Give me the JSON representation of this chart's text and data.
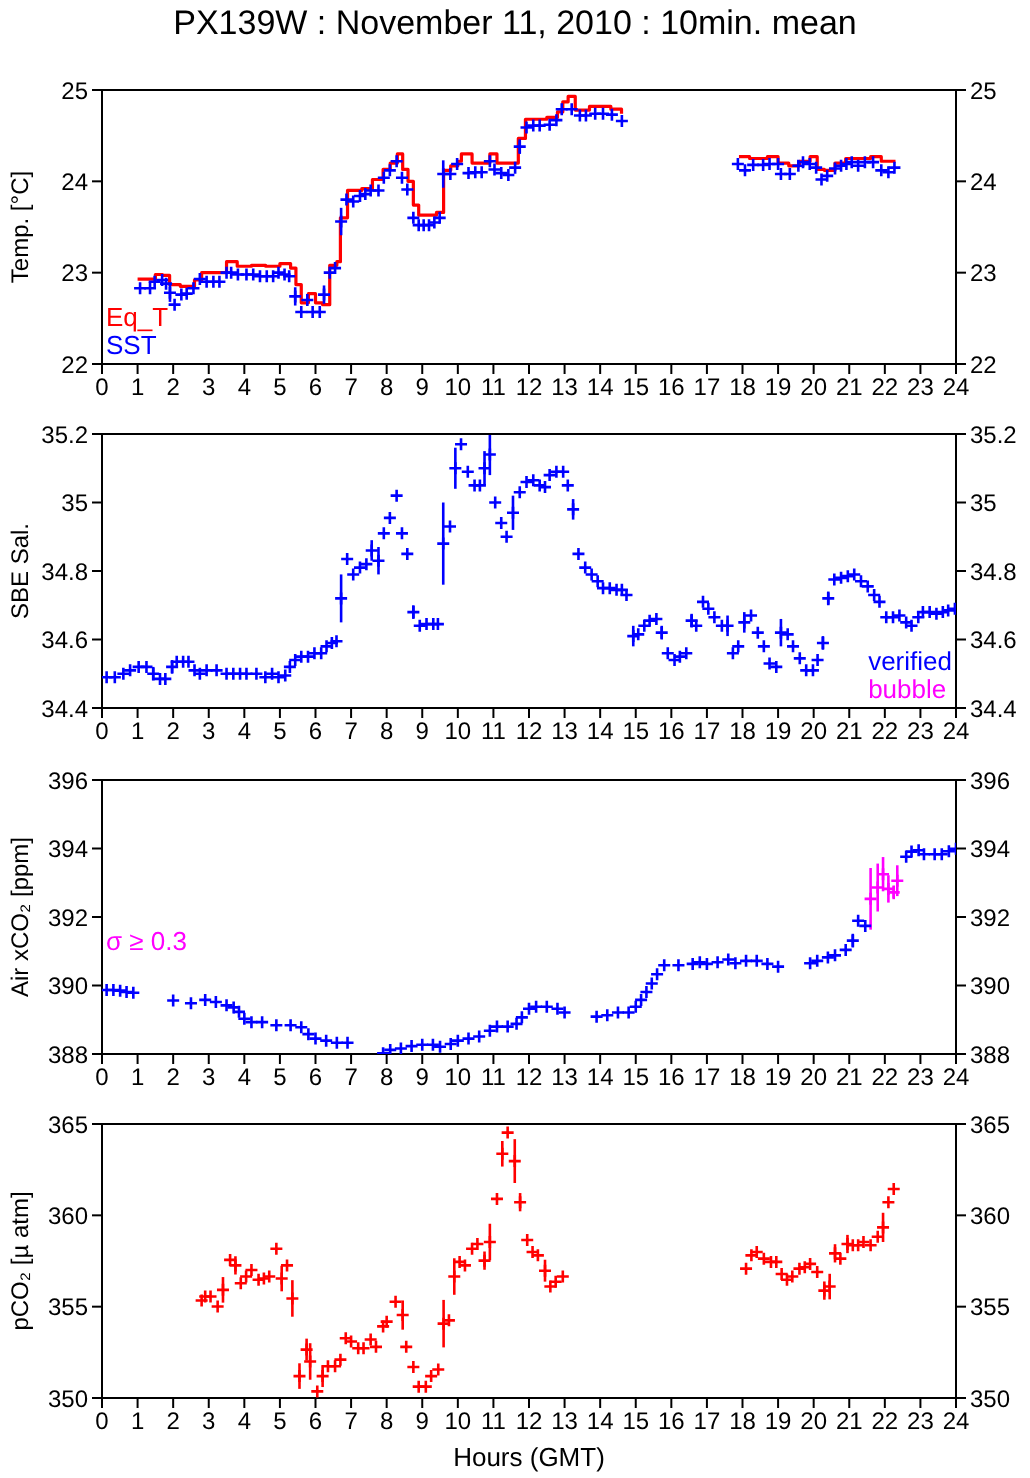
{
  "chart_data": [
    {
      "type": "scatter",
      "title": "PX139W : November 11, 2010 : 10min. mean",
      "ylabel": "Temp. [°C]",
      "marker": "cross",
      "legend": "bottom left",
      "xlim": [
        0,
        24
      ],
      "xticks": [
        0,
        1,
        2,
        3,
        4,
        5,
        6,
        7,
        8,
        9,
        10,
        11,
        12,
        13,
        14,
        15,
        16,
        17,
        18,
        19,
        20,
        21,
        22,
        23,
        24
      ],
      "ylim": [
        22,
        25
      ],
      "yticks": [
        22,
        23,
        24,
        25
      ],
      "y2lim": [
        22,
        25
      ],
      "y2ticks": [
        22,
        23,
        24,
        25
      ],
      "series": [
        {
          "name": "Eq_T",
          "type": "step",
          "marker": "none",
          "color": "#ff0000",
          "x": [
            1.0,
            1.5,
            1.7,
            1.9,
            2.2,
            2.6,
            2.8,
            3.3,
            3.5,
            3.8,
            4.2,
            4.6,
            5.0,
            5.3,
            5.45,
            5.6,
            5.8,
            6.0,
            6.2,
            6.4,
            6.6,
            6.7,
            6.9,
            7.3,
            7.6,
            7.9,
            8.1,
            8.3,
            8.45,
            8.6,
            8.75,
            8.9,
            9.4,
            9.6,
            9.8,
            10.0,
            10.1,
            10.4,
            10.9,
            11.1,
            11.7,
            11.9,
            12.5,
            12.8,
            12.95,
            13.1,
            13.3,
            13.7,
            14.3,
            14.6,
            14.75,
            17.9,
            18.2,
            18.7,
            19.0,
            19.3,
            19.6,
            19.9,
            20.1,
            20.3,
            20.6,
            20.9,
            21.3,
            21.6,
            21.9,
            22.3
          ],
          "values": [
            22.93,
            22.98,
            22.97,
            22.87,
            22.85,
            22.92,
            23.0,
            23.0,
            23.12,
            23.07,
            23.08,
            23.07,
            23.1,
            23.05,
            22.87,
            22.67,
            22.77,
            22.67,
            22.65,
            23.08,
            23.12,
            23.6,
            23.9,
            23.92,
            24.02,
            24.13,
            24.2,
            24.3,
            24.13,
            24.0,
            23.74,
            23.63,
            23.66,
            24.12,
            24.17,
            24.22,
            24.3,
            24.2,
            24.3,
            24.2,
            24.47,
            24.68,
            24.7,
            24.76,
            24.87,
            24.93,
            24.78,
            24.82,
            24.79,
            24.74,
            null,
            24.27,
            24.25,
            24.27,
            24.2,
            24.17,
            24.22,
            24.27,
            24.13,
            24.12,
            24.2,
            24.25,
            24.25,
            24.27,
            24.22,
            24.22
          ]
        },
        {
          "name": "SST",
          "color": "#0000ff",
          "x": [
            1.07,
            1.35,
            1.48,
            1.69,
            1.8,
            1.91,
            2.04,
            2.23,
            2.38,
            2.57,
            2.75,
            2.94,
            3.13,
            3.3,
            3.5,
            3.63,
            3.82,
            4.06,
            4.25,
            4.44,
            4.63,
            4.81,
            4.96,
            5.13,
            5.26,
            5.43,
            5.6,
            5.77,
            5.92,
            6.12,
            6.24,
            6.4,
            6.55,
            6.72,
            6.87,
            7.06,
            7.25,
            7.4,
            7.55,
            7.77,
            7.92,
            8.09,
            8.28,
            8.43,
            8.58,
            8.75,
            8.9,
            9.04,
            9.19,
            9.34,
            9.49,
            9.59,
            9.79,
            9.98,
            10.3,
            10.49,
            10.67,
            10.9,
            11.03,
            11.22,
            11.42,
            11.61,
            11.74,
            11.93,
            12.12,
            12.3,
            12.58,
            12.77,
            12.92,
            13.2,
            13.43,
            13.6,
            13.86,
            14.08,
            14.33,
            14.61,
            17.87,
            18.07,
            18.3,
            18.58,
            18.76,
            19.0,
            19.08,
            19.33,
            19.57,
            19.7,
            19.89,
            20.07,
            20.22,
            20.38,
            20.6,
            20.77,
            20.92,
            21.07,
            21.25,
            21.44,
            21.67,
            21.9,
            22.1,
            22.27
          ],
          "values": [
            22.83,
            22.83,
            22.9,
            22.92,
            22.88,
            22.78,
            22.65,
            22.76,
            22.77,
            22.83,
            22.93,
            22.9,
            22.9,
            22.9,
            23.0,
            23.0,
            22.98,
            22.98,
            22.98,
            22.96,
            22.96,
            22.96,
            23.0,
            22.98,
            22.96,
            22.74,
            22.57,
            22.7,
            22.57,
            22.57,
            22.76,
            23.0,
            23.05,
            23.56,
            23.8,
            23.78,
            23.84,
            23.86,
            23.9,
            23.9,
            24.04,
            24.12,
            24.22,
            24.04,
            23.91,
            23.6,
            23.52,
            23.52,
            23.52,
            23.55,
            23.6,
            24.08,
            24.08,
            24.19,
            24.09,
            24.1,
            24.1,
            24.22,
            24.13,
            24.09,
            24.07,
            24.15,
            24.38,
            24.59,
            24.61,
            24.61,
            24.62,
            24.67,
            24.79,
            24.79,
            24.72,
            24.72,
            24.74,
            24.74,
            24.73,
            24.66,
            24.19,
            24.12,
            24.18,
            24.18,
            24.19,
            24.19,
            24.08,
            24.08,
            24.17,
            24.21,
            24.19,
            24.15,
            24.02,
            24.06,
            24.14,
            24.17,
            24.19,
            24.21,
            24.17,
            24.21,
            24.21,
            24.12,
            24.1,
            24.15
          ],
          "errors": [
            null,
            null,
            null,
            null,
            null,
            0.1,
            null,
            null,
            null,
            null,
            null,
            null,
            null,
            null,
            null,
            null,
            null,
            null,
            null,
            null,
            null,
            null,
            null,
            null,
            null,
            0.1,
            null,
            null,
            null,
            null,
            0.1,
            null,
            null,
            0.15,
            null,
            null,
            null,
            null,
            null,
            null,
            null,
            null,
            null,
            null,
            null,
            null,
            null,
            null,
            null,
            null,
            null,
            0.15,
            null,
            null,
            null,
            null,
            null,
            null,
            null,
            null,
            null,
            null,
            0.08,
            null,
            null,
            null,
            null,
            null,
            null,
            null,
            null,
            null,
            null,
            null,
            null,
            null,
            null,
            null,
            null,
            null,
            null,
            null,
            null,
            null,
            null,
            null,
            null,
            null,
            null,
            null,
            null,
            null,
            null,
            null,
            null,
            null,
            null,
            null,
            null,
            null
          ]
        }
      ]
    },
    {
      "type": "scatter",
      "ylabel": "SBE Sal.",
      "marker": "cross",
      "legend": "bottom right",
      "xlim": [
        0,
        24
      ],
      "xticks": [
        0,
        1,
        2,
        3,
        4,
        5,
        6,
        7,
        8,
        9,
        10,
        11,
        12,
        13,
        14,
        15,
        16,
        17,
        18,
        19,
        20,
        21,
        22,
        23,
        24
      ],
      "ylim": [
        34.4,
        35.2
      ],
      "yticks": [
        34.4,
        34.6,
        34.8,
        35,
        35.2
      ],
      "y2lim": [
        34.4,
        35.2
      ],
      "y2ticks": [
        34.4,
        34.6,
        34.8,
        35,
        35.2
      ],
      "series": [
        {
          "name": "verified",
          "color": "#0000ff",
          "x": [
            0.13,
            0.36,
            0.6,
            0.79,
            1.03,
            1.25,
            1.44,
            1.63,
            1.78,
            1.97,
            2.1,
            2.28,
            2.43,
            2.6,
            2.75,
            2.94,
            3.22,
            3.5,
            3.69,
            3.88,
            4.06,
            4.34,
            4.59,
            4.78,
            4.96,
            5.15,
            5.28,
            5.43,
            5.6,
            5.79,
            5.97,
            6.16,
            6.31,
            6.46,
            6.59,
            6.72,
            6.89,
            7.06,
            7.25,
            7.43,
            7.58,
            7.77,
            7.92,
            8.09,
            8.28,
            8.43,
            8.58,
            8.75,
            8.93,
            9.12,
            9.31,
            9.44,
            9.59,
            9.78,
            9.93,
            10.09,
            10.28,
            10.47,
            10.62,
            10.75,
            10.9,
            11.05,
            11.22,
            11.37,
            11.55,
            11.74,
            11.93,
            12.12,
            12.3,
            12.45,
            12.58,
            12.77,
            12.96,
            13.09,
            13.24,
            13.39,
            13.58,
            13.76,
            13.93,
            14.08,
            14.27,
            14.46,
            14.61,
            14.74,
            14.93,
            15.07,
            15.24,
            15.39,
            15.58,
            15.73,
            15.9,
            16.09,
            16.24,
            16.42,
            16.57,
            16.7,
            16.89,
            17.04,
            17.21,
            17.42,
            17.58,
            17.73,
            17.88,
            18.05,
            18.24,
            18.43,
            18.6,
            18.76,
            18.95,
            19.08,
            19.27,
            19.42,
            19.61,
            19.79,
            19.98,
            20.11,
            20.26,
            20.41,
            20.58,
            20.77,
            20.96,
            21.14,
            21.33,
            21.52,
            21.7,
            21.85,
            22.04,
            22.23,
            22.41,
            22.6,
            22.75,
            22.94,
            23.07,
            23.26,
            23.45,
            23.63,
            23.78,
            23.97
          ],
          "values": [
            34.49,
            34.49,
            34.5,
            34.51,
            34.52,
            34.52,
            34.5,
            34.485,
            34.485,
            34.52,
            34.535,
            34.535,
            34.535,
            34.51,
            34.5,
            34.51,
            34.51,
            34.5,
            34.5,
            34.5,
            34.5,
            34.5,
            34.49,
            34.5,
            34.49,
            34.495,
            34.52,
            34.54,
            34.55,
            34.55,
            34.56,
            34.56,
            34.58,
            34.59,
            34.595,
            34.72,
            34.835,
            34.79,
            34.81,
            34.82,
            34.86,
            34.83,
            34.91,
            34.955,
            35.02,
            34.91,
            34.85,
            34.68,
            34.64,
            34.645,
            34.645,
            34.645,
            34.88,
            34.93,
            35.1,
            35.17,
            35.09,
            35.05,
            35.05,
            35.1,
            35.14,
            35.0,
            34.94,
            34.9,
            34.97,
            35.03,
            35.06,
            35.065,
            35.05,
            35.045,
            35.08,
            35.09,
            35.09,
            35.05,
            34.98,
            34.85,
            34.81,
            34.79,
            34.77,
            34.75,
            34.75,
            34.745,
            34.745,
            34.73,
            34.61,
            34.615,
            34.64,
            34.655,
            34.66,
            34.62,
            34.56,
            34.54,
            34.55,
            34.56,
            34.655,
            34.64,
            34.71,
            34.69,
            34.665,
            34.64,
            34.64,
            34.56,
            34.58,
            34.65,
            34.67,
            34.62,
            34.58,
            34.53,
            34.52,
            34.62,
            34.615,
            34.58,
            34.545,
            34.51,
            34.51,
            34.54,
            34.59,
            34.72,
            34.775,
            34.78,
            34.785,
            34.79,
            34.77,
            34.755,
            34.73,
            34.71,
            34.665,
            34.665,
            34.67,
            34.65,
            34.64,
            34.665,
            34.68,
            34.68,
            34.675,
            34.68,
            34.685,
            34.69
          ],
          "errors": [
            null,
            null,
            null,
            null,
            null,
            null,
            0.02,
            null,
            null,
            0.02,
            null,
            null,
            null,
            null,
            null,
            null,
            null,
            null,
            null,
            null,
            null,
            null,
            null,
            null,
            null,
            null,
            null,
            null,
            null,
            null,
            null,
            null,
            null,
            null,
            null,
            0.07,
            null,
            null,
            null,
            null,
            0.03,
            0.04,
            null,
            null,
            null,
            null,
            null,
            0.02,
            null,
            null,
            null,
            null,
            0.12,
            null,
            0.06,
            null,
            null,
            null,
            null,
            0.05,
            0.06,
            null,
            null,
            null,
            0.05,
            null,
            null,
            null,
            null,
            null,
            null,
            null,
            null,
            null,
            0.03,
            null,
            null,
            null,
            null,
            null,
            null,
            null,
            null,
            null,
            0.03,
            null,
            null,
            null,
            null,
            0.02,
            null,
            null,
            null,
            null,
            0.02,
            null,
            null,
            null,
            null,
            null,
            0.03,
            null,
            null,
            0.03,
            null,
            null,
            null,
            null,
            null,
            0.04,
            null,
            null,
            null,
            null,
            null,
            null,
            0.02,
            0.02,
            null,
            null,
            null,
            null,
            null,
            null,
            null,
            null,
            null,
            null,
            null,
            null,
            null,
            null,
            null,
            null,
            null,
            null,
            null,
            null
          ]
        },
        {
          "name": "bubble",
          "color": "#ff00ff"
        }
      ]
    },
    {
      "type": "scatter",
      "ylabel": "Air xCO₂ [ppm]",
      "marker": "cross",
      "legend": "left",
      "xlim": [
        0,
        24
      ],
      "xticks": [
        0,
        1,
        2,
        3,
        4,
        5,
        6,
        7,
        8,
        9,
        10,
        11,
        12,
        13,
        14,
        15,
        16,
        17,
        18,
        19,
        20,
        21,
        22,
        23,
        24
      ],
      "ylim": [
        388,
        396
      ],
      "yticks": [
        388,
        390,
        392,
        394,
        396
      ],
      "y2lim": [
        388,
        396
      ],
      "y2ticks": [
        388,
        390,
        392,
        394,
        396
      ],
      "series": [
        {
          "color": "#0000ff",
          "x": [
            0.13,
            0.32,
            0.51,
            0.69,
            0.88,
            2.0,
            2.5,
            2.9,
            3.2,
            3.5,
            3.7,
            3.85,
            4.0,
            4.2,
            4.5,
            4.9,
            5.3,
            5.6,
            5.8,
            6.0,
            6.3,
            6.6,
            6.9,
            7.9,
            8.1,
            8.4,
            8.7,
            9.0,
            9.3,
            9.5,
            9.8,
            10.0,
            10.3,
            10.6,
            10.9,
            11.1,
            11.4,
            11.65,
            11.8,
            12.0,
            12.2,
            12.5,
            12.8,
            13.0,
            13.9,
            14.2,
            14.5,
            14.8,
            15.0,
            15.15,
            15.3,
            15.45,
            15.6,
            15.8,
            16.2,
            16.6,
            16.8,
            17.0,
            17.3,
            17.6,
            17.8,
            18.1,
            18.4,
            18.7,
            19.0,
            19.9,
            20.1,
            20.4,
            20.6,
            20.9,
            21.1,
            21.25,
            21.45,
            22.6,
            22.75,
            22.95,
            23.1,
            23.4,
            23.6,
            23.8,
            24.0
          ],
          "values": [
            389.87,
            389.87,
            389.85,
            389.81,
            389.79,
            389.56,
            389.48,
            389.58,
            389.52,
            389.42,
            389.36,
            389.23,
            389.03,
            388.93,
            388.93,
            388.84,
            388.84,
            388.78,
            388.58,
            388.45,
            388.39,
            388.33,
            388.33,
            388.02,
            388.12,
            388.16,
            388.23,
            388.27,
            388.27,
            388.21,
            388.29,
            388.39,
            388.45,
            388.51,
            388.68,
            388.8,
            388.8,
            388.88,
            389.07,
            389.32,
            389.38,
            389.38,
            389.32,
            389.21,
            389.09,
            389.13,
            389.21,
            389.21,
            389.38,
            389.58,
            389.81,
            390.06,
            390.33,
            390.59,
            390.59,
            390.63,
            390.68,
            390.63,
            390.68,
            390.76,
            390.65,
            390.72,
            390.72,
            390.63,
            390.55,
            390.65,
            390.72,
            390.82,
            390.88,
            391.04,
            391.31,
            391.89,
            391.74,
            393.76,
            393.91,
            393.95,
            393.83,
            393.83,
            393.83,
            393.92,
            393.99
          ],
          "errors": [
            null,
            null,
            null,
            null,
            null,
            null,
            null,
            null,
            null,
            null,
            null,
            null,
            null,
            null,
            null,
            null,
            null,
            null,
            null,
            null,
            null,
            null,
            null,
            null,
            null,
            null,
            null,
            null,
            null,
            null,
            null,
            null,
            null,
            null,
            null,
            null,
            null,
            null,
            null,
            null,
            null,
            null,
            null,
            null,
            null,
            null,
            null,
            null,
            null,
            null,
            null,
            null,
            null,
            null,
            null,
            null,
            null,
            null,
            null,
            null,
            null,
            null,
            null,
            null,
            null,
            null,
            null,
            null,
            null,
            null,
            0.2,
            null,
            null,
            null,
            null,
            null,
            null,
            null,
            null,
            null,
            null
          ]
        },
        {
          "name": "σ ≥ 0.3",
          "color": "#ff00ff",
          "x": [
            21.6,
            21.8,
            21.95,
            22.1,
            22.25,
            22.35
          ],
          "values": [
            392.53,
            392.86,
            393.25,
            392.82,
            392.72,
            393.06
          ],
          "errors": [
            0.9,
            0.7,
            0.5,
            0.4,
            0.2,
            0.45
          ]
        }
      ]
    },
    {
      "type": "scatter",
      "ylabel": "pCO₂ [µ atm]",
      "xlabel": "Hours (GMT)",
      "marker": "cross",
      "xlim": [
        0,
        24
      ],
      "xticks": [
        0,
        1,
        2,
        3,
        4,
        5,
        6,
        7,
        8,
        9,
        10,
        11,
        12,
        13,
        14,
        15,
        16,
        17,
        18,
        19,
        20,
        21,
        22,
        23,
        24
      ],
      "ylim": [
        350,
        365
      ],
      "yticks": [
        350,
        355,
        360,
        365
      ],
      "y2lim": [
        350,
        365
      ],
      "y2ticks": [
        350,
        355,
        360,
        365
      ],
      "series": [
        {
          "color": "#ff0000",
          "x": [
            2.8,
            2.9,
            3.05,
            3.25,
            3.4,
            3.6,
            3.75,
            3.9,
            4.05,
            4.2,
            4.4,
            4.55,
            4.7,
            4.9,
            5.05,
            5.2,
            5.35,
            5.55,
            5.75,
            5.85,
            6.05,
            6.2,
            6.35,
            6.55,
            6.7,
            6.85,
            7.0,
            7.2,
            7.35,
            7.55,
            7.7,
            7.9,
            8.0,
            8.25,
            8.45,
            8.55,
            8.75,
            8.9,
            9.1,
            9.25,
            9.45,
            9.6,
            9.75,
            9.9,
            10.05,
            10.2,
            10.4,
            10.55,
            10.75,
            10.9,
            11.1,
            11.25,
            11.4,
            11.6,
            11.75,
            11.95,
            12.1,
            12.25,
            12.45,
            12.6,
            12.75,
            12.95,
            18.1,
            18.25,
            18.4,
            18.6,
            18.8,
            18.95,
            19.1,
            19.25,
            19.4,
            19.6,
            19.75,
            19.9,
            20.1,
            20.3,
            20.45,
            20.6,
            20.75,
            20.95,
            21.1,
            21.25,
            21.4,
            21.6,
            21.8,
            21.95,
            22.1,
            22.25
          ],
          "values": [
            355.34,
            355.56,
            355.56,
            355.01,
            355.92,
            357.56,
            357.26,
            356.28,
            356.65,
            357.01,
            356.47,
            356.54,
            356.65,
            358.17,
            356.54,
            357.26,
            355.45,
            351.2,
            352.65,
            352.0,
            350.36,
            351.2,
            351.74,
            351.74,
            352.1,
            353.27,
            353.09,
            352.72,
            352.72,
            353.2,
            352.8,
            353.92,
            354.18,
            355.27,
            354.54,
            352.8,
            351.7,
            350.62,
            350.62,
            351.2,
            351.56,
            354.07,
            354.25,
            356.65,
            357.45,
            357.26,
            358.17,
            358.43,
            357.52,
            358.54,
            360.9,
            363.37,
            364.53,
            362.97,
            360.72,
            358.65,
            357.99,
            357.81,
            356.97,
            356.1,
            356.36,
            356.65,
            357.08,
            357.81,
            357.99,
            357.63,
            357.45,
            357.45,
            356.79,
            356.47,
            356.65,
            357.08,
            357.16,
            357.34,
            356.9,
            355.88,
            356.1,
            357.92,
            357.63,
            358.43,
            358.36,
            358.36,
            358.54,
            358.36,
            358.83,
            359.34,
            360.72,
            361.44
          ],
          "errors": [
            null,
            null,
            null,
            null,
            0.7,
            null,
            0.5,
            null,
            null,
            null,
            null,
            null,
            null,
            null,
            0.7,
            null,
            1.0,
            0.7,
            0.6,
            1.0,
            null,
            0.6,
            null,
            null,
            null,
            null,
            null,
            null,
            null,
            null,
            null,
            null,
            null,
            null,
            0.8,
            null,
            null,
            null,
            null,
            null,
            null,
            1.3,
            null,
            1.0,
            null,
            null,
            null,
            null,
            0.5,
            1.0,
            null,
            0.7,
            null,
            1.2,
            0.5,
            null,
            null,
            null,
            0.6,
            null,
            null,
            null,
            null,
            null,
            null,
            null,
            null,
            null,
            null,
            null,
            null,
            null,
            null,
            null,
            null,
            0.5,
            0.7,
            0.5,
            null,
            0.5,
            null,
            null,
            null,
            null,
            null,
            0.8,
            null,
            null
          ]
        }
      ]
    }
  ]
}
